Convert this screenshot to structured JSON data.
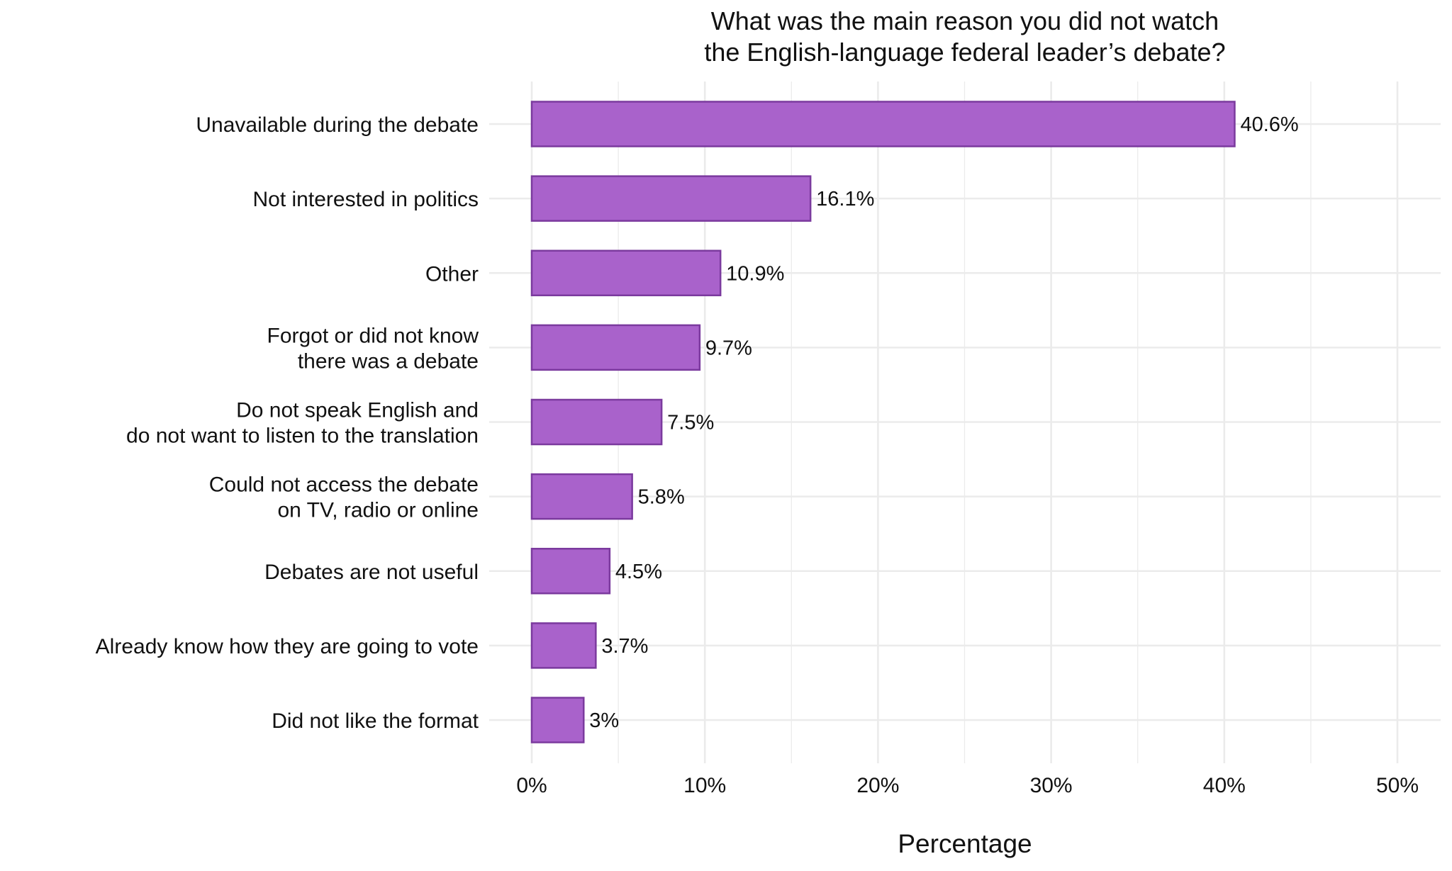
{
  "chart_data": {
    "type": "bar",
    "orientation": "horizontal",
    "title": [
      "What was the main reason you did not watch",
      "the English-language federal leader’s debate?"
    ],
    "xlabel": "Percentage",
    "ylabel": "",
    "xlim": [
      0,
      50
    ],
    "x_ticks": [
      "0%",
      "10%",
      "20%",
      "30%",
      "40%",
      "50%"
    ],
    "grid": true,
    "categories": [
      [
        "Unavailable during the debate"
      ],
      [
        "Not interested in politics"
      ],
      [
        "Other"
      ],
      [
        "Forgot or did not know",
        "there was a debate"
      ],
      [
        "Do not speak English and",
        "do not want to listen to the translation"
      ],
      [
        "Could not access the debate",
        "on TV, radio or online"
      ],
      [
        "Debates are not useful"
      ],
      [
        "Already know how they are going to vote"
      ],
      [
        "Did not like the format"
      ]
    ],
    "values": [
      40.6,
      16.1,
      10.9,
      9.7,
      7.5,
      5.8,
      4.5,
      3.7,
      3
    ],
    "data_labels": [
      "40.6%",
      "16.1%",
      "10.9%",
      "9.7%",
      "7.5%",
      "5.8%",
      "4.5%",
      "3.7%",
      "3%"
    ],
    "colors": {
      "bar_fill": "#a962cb",
      "bar_stroke": "#7b3a9e",
      "grid": "#ebebeb"
    }
  }
}
